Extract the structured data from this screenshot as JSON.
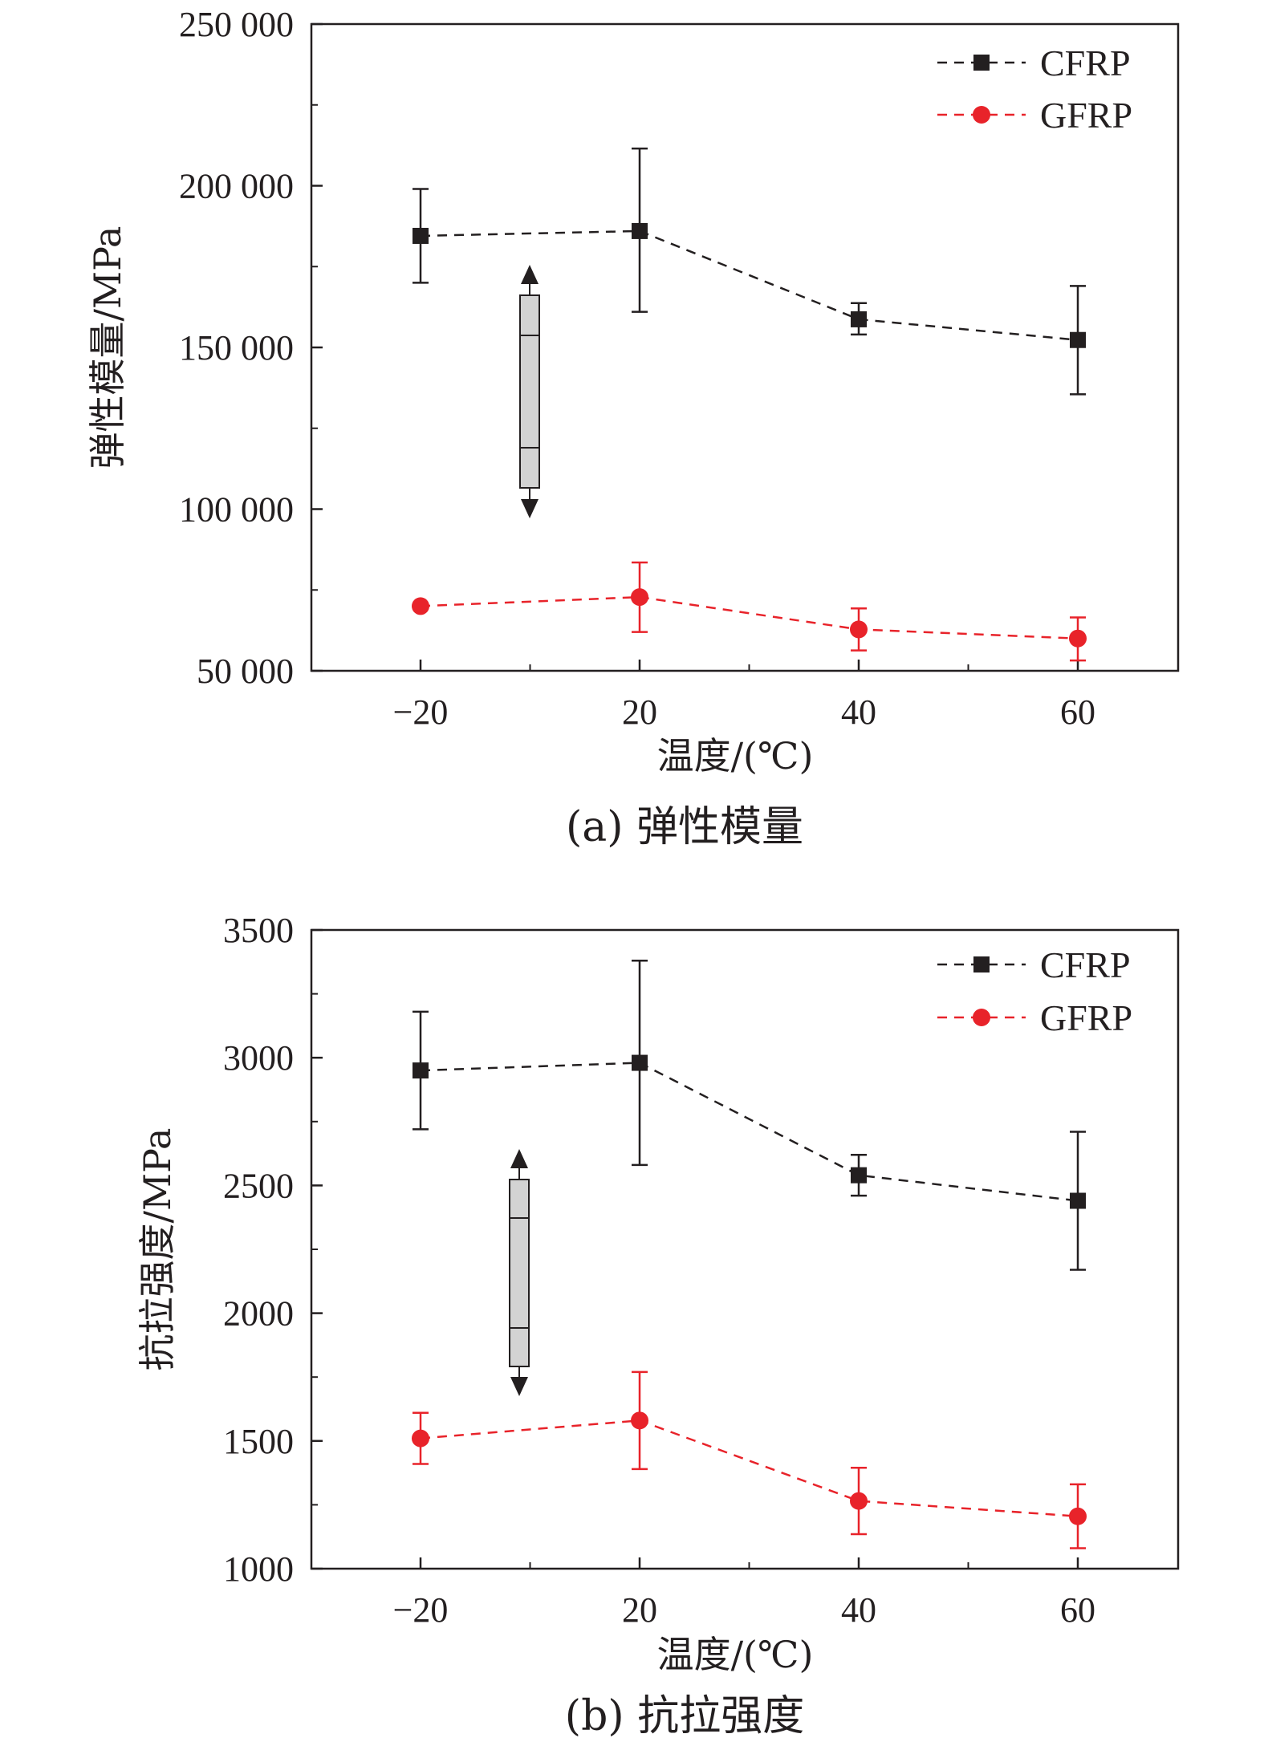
{
  "chart_data": [
    {
      "type": "line",
      "caption": "(a) 弹性模量",
      "xlabel": "温度/(℃)",
      "ylabel": "弹性模量/MPa",
      "x_ticks": [
        -20,
        20,
        40,
        60
      ],
      "x_tick_labels": [
        "−20",
        "20",
        "40",
        "60"
      ],
      "y_ticks": [
        50000,
        100000,
        150000,
        200000,
        250000
      ],
      "y_tick_labels": [
        "50 000",
        "100 000",
        "150 000",
        "200 000",
        "250 000"
      ],
      "ylim": [
        50000,
        250000
      ],
      "legend_position": "top-right",
      "inset": "specimen-with-tension-arrows",
      "series": [
        {
          "name": "CFRP",
          "color": "#231f20",
          "marker": "square",
          "x": [
            -20,
            20,
            40,
            60
          ],
          "y": [
            184500,
            186000,
            158700,
            152300
          ],
          "err_low": [
            14500,
            25000,
            4700,
            16800
          ],
          "err_high": [
            14500,
            25500,
            5000,
            16700
          ]
        },
        {
          "name": "GFRP",
          "color": "#e8232a",
          "marker": "circle",
          "x": [
            -20,
            20,
            40,
            60
          ],
          "y": [
            70000,
            72800,
            62800,
            60000
          ],
          "err_low": [
            0,
            10800,
            6500,
            6800
          ],
          "err_high": [
            0,
            10700,
            6500,
            6500
          ]
        }
      ]
    },
    {
      "type": "line",
      "caption": "(b) 抗拉强度",
      "xlabel": "温度/(℃)",
      "ylabel": "抗拉强度/MPa",
      "x_ticks": [
        -20,
        20,
        40,
        60
      ],
      "x_tick_labels": [
        "−20",
        "20",
        "40",
        "60"
      ],
      "y_ticks": [
        1000,
        1500,
        2000,
        2500,
        3000,
        3500
      ],
      "y_tick_labels": [
        "1000",
        "1500",
        "2000",
        "2500",
        "3000",
        "3500"
      ],
      "ylim": [
        1000,
        3500
      ],
      "legend_position": "top-right",
      "inset": "specimen-with-tension-arrows",
      "series": [
        {
          "name": "CFRP",
          "color": "#231f20",
          "marker": "square",
          "x": [
            -20,
            20,
            40,
            60
          ],
          "y": [
            2950,
            2980,
            2540,
            2440
          ],
          "err_low": [
            230,
            400,
            80,
            270
          ],
          "err_high": [
            230,
            400,
            80,
            270
          ]
        },
        {
          "name": "GFRP",
          "color": "#e8232a",
          "marker": "circle",
          "x": [
            -20,
            20,
            40,
            60
          ],
          "y": [
            1510,
            1580,
            1265,
            1205
          ],
          "err_low": [
            100,
            190,
            130,
            125
          ],
          "err_high": [
            100,
            190,
            130,
            125
          ]
        }
      ]
    }
  ]
}
